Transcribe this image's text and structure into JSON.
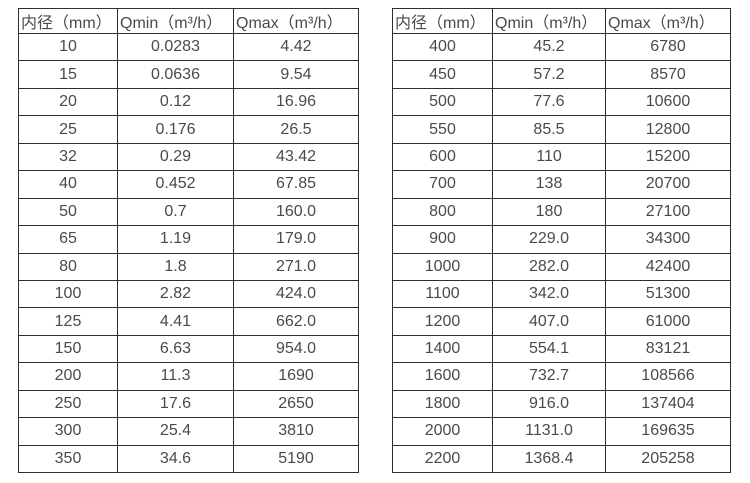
{
  "colors": {
    "background": "#ffffff",
    "border": "#2e2e2e",
    "text": "#4a4a4a"
  },
  "left_table": {
    "headers": [
      "内径（mm）",
      "Qmin（m³/h）",
      "Qmax（m³/h）"
    ],
    "rows": [
      [
        "10",
        "0.0283",
        "4.42"
      ],
      [
        "15",
        "0.0636",
        "9.54"
      ],
      [
        "20",
        "0.12",
        "16.96"
      ],
      [
        "25",
        "0.176",
        "26.5"
      ],
      [
        "32",
        "0.29",
        "43.42"
      ],
      [
        "40",
        "0.452",
        "67.85"
      ],
      [
        "50",
        "0.7",
        "160.0"
      ],
      [
        "65",
        "1.19",
        "179.0"
      ],
      [
        "80",
        "1.8",
        "271.0"
      ],
      [
        "100",
        "2.82",
        "424.0"
      ],
      [
        "125",
        "4.41",
        "662.0"
      ],
      [
        "150",
        "6.63",
        "954.0"
      ],
      [
        "200",
        "11.3",
        "1690"
      ],
      [
        "250",
        "17.6",
        "2650"
      ],
      [
        "300",
        "25.4",
        "3810"
      ],
      [
        "350",
        "34.6",
        "5190"
      ]
    ]
  },
  "right_table": {
    "headers": [
      "内径（mm）",
      "Qmin（m³/h）",
      "Qmax（m³/h）"
    ],
    "rows": [
      [
        "400",
        "45.2",
        "6780"
      ],
      [
        "450",
        "57.2",
        "8570"
      ],
      [
        "500",
        "77.6",
        "10600"
      ],
      [
        "550",
        "85.5",
        "12800"
      ],
      [
        "600",
        "110",
        "15200"
      ],
      [
        "700",
        "138",
        "20700"
      ],
      [
        "800",
        "180",
        "27100"
      ],
      [
        "900",
        "229.0",
        "34300"
      ],
      [
        "1000",
        "282.0",
        "42400"
      ],
      [
        "1100",
        "342.0",
        "51300"
      ],
      [
        "1200",
        "407.0",
        "61000"
      ],
      [
        "1400",
        "554.1",
        "83121"
      ],
      [
        "1600",
        "732.7",
        "108566"
      ],
      [
        "1800",
        "916.0",
        "137404"
      ],
      [
        "2000",
        "1131.0",
        "169635"
      ],
      [
        "2200",
        "1368.4",
        "205258"
      ]
    ]
  }
}
